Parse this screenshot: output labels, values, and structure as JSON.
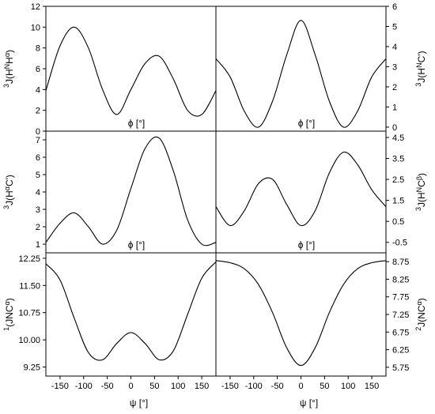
{
  "chart_data": [
    {
      "type": "line",
      "position": "top-left",
      "ylabel": {
        "pre": "3",
        "main": "J(H",
        "sup": "N",
        "main2": "H",
        "sub": "α",
        "post": ")"
      },
      "xlabel_inner": "ϕ [°]",
      "xlim": [
        -180,
        180
      ],
      "ylim": [
        0,
        12
      ],
      "yticks": [
        "0",
        "2",
        "4",
        "6",
        "8",
        "10",
        "12"
      ],
      "ytick_values": [
        0,
        2,
        4,
        6,
        8,
        10,
        12
      ],
      "x": [
        -180,
        -150,
        -120,
        -90,
        -60,
        -30,
        0,
        30,
        60,
        90,
        120,
        150,
        180
      ],
      "y": [
        3.9,
        8.2,
        10.0,
        8.0,
        4.0,
        1.6,
        4.0,
        6.5,
        7.2,
        5.0,
        2.0,
        1.6,
        3.9
      ]
    },
    {
      "type": "line",
      "position": "top-right",
      "ylabel": {
        "pre": "3",
        "main": "J(H",
        "sup": "N",
        "main2": "C'",
        "sub": "",
        "post": ")"
      },
      "xlabel_inner": "ϕ [°]",
      "xlim": [
        -180,
        180
      ],
      "ylim": [
        -0.2,
        6.0
      ],
      "yticks": [
        "0",
        "1",
        "2",
        "3",
        "4",
        "5",
        "6"
      ],
      "ytick_values": [
        0,
        1,
        2,
        3,
        4,
        5,
        6
      ],
      "x": [
        -180,
        -150,
        -120,
        -90,
        -60,
        -30,
        0,
        30,
        60,
        90,
        120,
        150,
        180
      ],
      "y": [
        3.4,
        2.5,
        0.8,
        0.0,
        1.3,
        3.6,
        5.3,
        3.6,
        1.3,
        0.0,
        0.8,
        2.5,
        3.4
      ]
    },
    {
      "type": "line",
      "position": "middle-left",
      "ylabel": {
        "pre": "3",
        "main": "J(H",
        "sup": "α",
        "main2": "C'",
        "sub": "",
        "post": ")"
      },
      "xlabel_inner": "ϕ [°]",
      "xlim": [
        -180,
        180
      ],
      "ylim": [
        0.5,
        7.5
      ],
      "yticks": [
        "1",
        "2",
        "3",
        "4",
        "5",
        "6",
        "7"
      ],
      "ytick_values": [
        1,
        2,
        3,
        4,
        5,
        6,
        7
      ],
      "x": [
        -180,
        -150,
        -120,
        -90,
        -60,
        -30,
        0,
        30,
        60,
        90,
        120,
        150,
        180
      ],
      "y": [
        1.1,
        2.2,
        2.8,
        2.0,
        1.0,
        1.8,
        4.2,
        6.5,
        7.1,
        5.2,
        2.4,
        1.0,
        1.1
      ]
    },
    {
      "type": "line",
      "position": "middle-right",
      "ylabel": {
        "pre": "3",
        "main": "J(H",
        "sup": "N",
        "main2": "C",
        "sub": "β",
        "post": ")"
      },
      "xlabel_inner": "ϕ [°]",
      "xlim": [
        -180,
        180
      ],
      "ylim": [
        -1.0,
        4.8
      ],
      "yticks": [
        "-0.5",
        "0.5",
        "1.5",
        "2.5",
        "3.5",
        "4.5"
      ],
      "ytick_values": [
        -0.5,
        0.5,
        1.5,
        2.5,
        3.5,
        4.5
      ],
      "x": [
        -180,
        -150,
        -120,
        -90,
        -60,
        -30,
        0,
        30,
        60,
        90,
        120,
        150,
        180
      ],
      "y": [
        1.2,
        0.3,
        1.0,
        2.3,
        2.5,
        1.3,
        0.3,
        1.0,
        2.8,
        3.8,
        3.2,
        2.0,
        1.2
      ]
    },
    {
      "type": "line",
      "position": "bottom-left",
      "ylabel": {
        "pre": "1",
        "main": "(JNC",
        "sup": "",
        "main2": "",
        "sub": "α",
        "post": ")"
      },
      "xlabel": "ψ [°]",
      "xlim": [
        -180,
        180
      ],
      "ylim": [
        9.0,
        12.4
      ],
      "yticks": [
        "9.25",
        "10.00",
        "10.75",
        "11.50",
        "12.25"
      ],
      "ytick_values": [
        9.25,
        10.0,
        10.75,
        11.5,
        12.25
      ],
      "xticks": [
        "-150",
        "-100",
        "-50",
        "0",
        "50",
        "100",
        "150"
      ],
      "xtick_values": [
        -150,
        -100,
        -50,
        0,
        50,
        100,
        150
      ],
      "x": [
        -180,
        -150,
        -120,
        -90,
        -60,
        -30,
        0,
        30,
        60,
        90,
        120,
        150,
        180
      ],
      "y": [
        12.1,
        11.65,
        10.6,
        9.65,
        9.45,
        9.9,
        10.2,
        9.9,
        9.45,
        9.7,
        10.7,
        11.7,
        12.15
      ]
    },
    {
      "type": "line",
      "position": "bottom-right",
      "ylabel": {
        "pre": "2",
        "main": "J(NC",
        "sup": "",
        "main2": "",
        "sub": "α",
        "post": ")"
      },
      "xlabel": "ψ [°]",
      "xlim": [
        -180,
        180
      ],
      "ylim": [
        5.5,
        9.0
      ],
      "yticks": [
        "5.75",
        "6.25",
        "6.75",
        "7.25",
        "7.75",
        "8.25",
        "8.75"
      ],
      "ytick_values": [
        5.75,
        6.25,
        6.75,
        7.25,
        7.75,
        8.25,
        8.75
      ],
      "xticks": [
        "-150",
        "-100",
        "-50",
        "0",
        "50",
        "100",
        "150"
      ],
      "xtick_values": [
        -150,
        -100,
        -50,
        0,
        50,
        100,
        150
      ],
      "x": [
        -180,
        -150,
        -120,
        -90,
        -60,
        -30,
        0,
        30,
        60,
        90,
        120,
        150,
        180
      ],
      "y": [
        8.78,
        8.72,
        8.55,
        8.1,
        7.3,
        6.3,
        5.8,
        6.3,
        7.3,
        8.1,
        8.55,
        8.72,
        8.78
      ]
    }
  ]
}
